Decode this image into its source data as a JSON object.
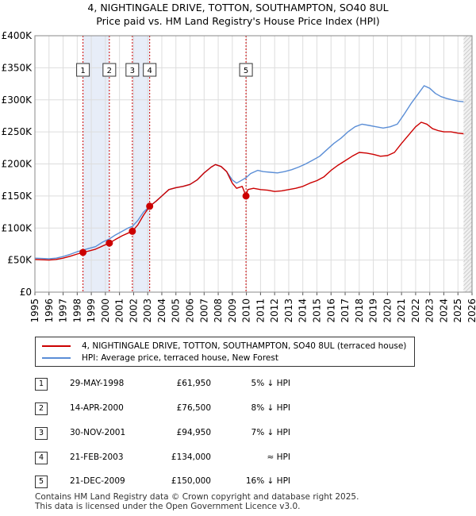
{
  "title_line1": "4, NIGHTINGALE DRIVE, TOTTON, SOUTHAMPTON, SO40 8UL",
  "title_line2": "Price paid vs. HM Land Registry's House Price Index (HPI)",
  "chart_data": {
    "type": "line",
    "xlim": [
      1995,
      2026
    ],
    "ylim": [
      0,
      400000
    ],
    "yticks": [
      {
        "value": 0,
        "label": "£0"
      },
      {
        "value": 50000,
        "label": "£50K"
      },
      {
        "value": 100000,
        "label": "£100K"
      },
      {
        "value": 150000,
        "label": "£150K"
      },
      {
        "value": 200000,
        "label": "£200K"
      },
      {
        "value": 250000,
        "label": "£250K"
      },
      {
        "value": 300000,
        "label": "£300K"
      },
      {
        "value": 350000,
        "label": "£350K"
      },
      {
        "value": 400000,
        "label": "£400K"
      }
    ],
    "xticks": [
      "1995",
      "1996",
      "1997",
      "1998",
      "1999",
      "2000",
      "2001",
      "2002",
      "2003",
      "2004",
      "2005",
      "2006",
      "2007",
      "2008",
      "2009",
      "2010",
      "2011",
      "2012",
      "2013",
      "2014",
      "2015",
      "2016",
      "2017",
      "2018",
      "2019",
      "2020",
      "2021",
      "2022",
      "2023",
      "2024",
      "2025",
      "2026"
    ],
    "series": [
      {
        "name": "4, NIGHTINGALE DRIVE, TOTTON, SOUTHAMPTON, SO40 8UL (terraced house)",
        "color": "#cc0000",
        "points": [
          [
            1995.0,
            51000
          ],
          [
            1995.5,
            50500
          ],
          [
            1996.0,
            50000
          ],
          [
            1996.5,
            51000
          ],
          [
            1997.0,
            53000
          ],
          [
            1997.5,
            56000
          ],
          [
            1998.0,
            59500
          ],
          [
            1998.41,
            61950
          ],
          [
            1998.8,
            64000
          ],
          [
            1999.3,
            67000
          ],
          [
            1999.8,
            72000
          ],
          [
            2000.28,
            76500
          ],
          [
            2000.7,
            82000
          ],
          [
            2001.2,
            88000
          ],
          [
            2001.6,
            92000
          ],
          [
            2001.91,
            94950
          ],
          [
            2002.3,
            105000
          ],
          [
            2002.7,
            120000
          ],
          [
            2003.14,
            134000
          ],
          [
            2003.6,
            142000
          ],
          [
            2004.0,
            150000
          ],
          [
            2004.5,
            160000
          ],
          [
            2005.0,
            163000
          ],
          [
            2005.5,
            165000
          ],
          [
            2006.0,
            168000
          ],
          [
            2006.5,
            175000
          ],
          [
            2007.0,
            186000
          ],
          [
            2007.5,
            195000
          ],
          [
            2007.8,
            199000
          ],
          [
            2008.2,
            196000
          ],
          [
            2008.6,
            188000
          ],
          [
            2009.0,
            170000
          ],
          [
            2009.3,
            162000
          ],
          [
            2009.7,
            165000
          ],
          [
            2009.97,
            150000
          ],
          [
            2010.1,
            160000
          ],
          [
            2010.5,
            162000
          ],
          [
            2011.0,
            160000
          ],
          [
            2011.5,
            159000
          ],
          [
            2012.0,
            157000
          ],
          [
            2012.5,
            158000
          ],
          [
            2013.0,
            160000
          ],
          [
            2013.5,
            162000
          ],
          [
            2014.0,
            165000
          ],
          [
            2014.5,
            170000
          ],
          [
            2015.0,
            174000
          ],
          [
            2015.5,
            180000
          ],
          [
            2016.0,
            190000
          ],
          [
            2016.5,
            198000
          ],
          [
            2017.0,
            205000
          ],
          [
            2017.5,
            212000
          ],
          [
            2018.0,
            218000
          ],
          [
            2018.5,
            217000
          ],
          [
            2019.0,
            215000
          ],
          [
            2019.5,
            212000
          ],
          [
            2020.0,
            213000
          ],
          [
            2020.5,
            218000
          ],
          [
            2021.0,
            232000
          ],
          [
            2021.5,
            245000
          ],
          [
            2022.0,
            258000
          ],
          [
            2022.4,
            265000
          ],
          [
            2022.8,
            262000
          ],
          [
            2023.2,
            255000
          ],
          [
            2023.6,
            252000
          ],
          [
            2024.0,
            250000
          ],
          [
            2024.5,
            250000
          ],
          [
            2025.0,
            248000
          ],
          [
            2025.4,
            247000
          ]
        ]
      },
      {
        "name": "HPI: Average price, terraced house, New Forest",
        "color": "#5b8ed6",
        "points": [
          [
            1995.0,
            53000
          ],
          [
            1995.5,
            52500
          ],
          [
            1996.0,
            52000
          ],
          [
            1996.5,
            53000
          ],
          [
            1997.0,
            55500
          ],
          [
            1997.5,
            59000
          ],
          [
            1998.0,
            63000
          ],
          [
            1998.41,
            65500
          ],
          [
            1998.8,
            68000
          ],
          [
            1999.3,
            71000
          ],
          [
            1999.8,
            78000
          ],
          [
            2000.28,
            83000
          ],
          [
            2000.7,
            89000
          ],
          [
            2001.2,
            95000
          ],
          [
            2001.6,
            100000
          ],
          [
            2001.91,
            102500
          ],
          [
            2002.3,
            112000
          ],
          [
            2002.7,
            125000
          ],
          [
            2003.14,
            134000
          ],
          [
            2003.6,
            142000
          ],
          [
            2004.0,
            150000
          ],
          [
            2004.5,
            160000
          ],
          [
            2005.0,
            163000
          ],
          [
            2005.5,
            165000
          ],
          [
            2006.0,
            168000
          ],
          [
            2006.5,
            175000
          ],
          [
            2007.0,
            186000
          ],
          [
            2007.5,
            195000
          ],
          [
            2007.8,
            199000
          ],
          [
            2008.2,
            196000
          ],
          [
            2008.6,
            188000
          ],
          [
            2009.0,
            175000
          ],
          [
            2009.3,
            170000
          ],
          [
            2009.7,
            175000
          ],
          [
            2009.97,
            178500
          ],
          [
            2010.3,
            185000
          ],
          [
            2010.8,
            190000
          ],
          [
            2011.2,
            188000
          ],
          [
            2011.7,
            187000
          ],
          [
            2012.2,
            186000
          ],
          [
            2012.7,
            188000
          ],
          [
            2013.2,
            191000
          ],
          [
            2013.7,
            195000
          ],
          [
            2014.2,
            200000
          ],
          [
            2014.7,
            206000
          ],
          [
            2015.2,
            212000
          ],
          [
            2015.7,
            222000
          ],
          [
            2016.2,
            232000
          ],
          [
            2016.7,
            240000
          ],
          [
            2017.2,
            250000
          ],
          [
            2017.7,
            258000
          ],
          [
            2018.2,
            262000
          ],
          [
            2018.7,
            260000
          ],
          [
            2019.2,
            258000
          ],
          [
            2019.7,
            256000
          ],
          [
            2020.2,
            258000
          ],
          [
            2020.7,
            262000
          ],
          [
            2021.2,
            278000
          ],
          [
            2021.7,
            295000
          ],
          [
            2022.2,
            310000
          ],
          [
            2022.6,
            322000
          ],
          [
            2023.0,
            318000
          ],
          [
            2023.4,
            310000
          ],
          [
            2023.8,
            305000
          ],
          [
            2024.2,
            302000
          ],
          [
            2024.6,
            300000
          ],
          [
            2025.0,
            298000
          ],
          [
            2025.4,
            297000
          ]
        ]
      }
    ],
    "sales": [
      {
        "label": "1",
        "x": 1998.41,
        "price": 61950
      },
      {
        "label": "2",
        "x": 2000.28,
        "price": 76500
      },
      {
        "label": "3",
        "x": 2001.91,
        "price": 94950
      },
      {
        "label": "4",
        "x": 2003.14,
        "price": 134000
      },
      {
        "label": "5",
        "x": 2009.97,
        "price": 150000
      }
    ],
    "shaded_spans": [
      [
        1998.41,
        2000.28
      ],
      [
        2001.91,
        2003.14
      ]
    ],
    "projection_start": 2025.4,
    "grid": true
  },
  "legend": {
    "property_label": "4, NIGHTINGALE DRIVE, TOTTON, SOUTHAMPTON, SO40 8UL (terraced house)",
    "hpi_label": "HPI: Average price, terraced house, New Forest",
    "property_color": "#cc0000",
    "hpi_color": "#5b8ed6"
  },
  "transactions": [
    {
      "num": "1",
      "date": "29-MAY-1998",
      "price": "£61,950",
      "hpi": "5% ↓ HPI"
    },
    {
      "num": "2",
      "date": "14-APR-2000",
      "price": "£76,500",
      "hpi": "8% ↓ HPI"
    },
    {
      "num": "3",
      "date": "30-NOV-2001",
      "price": "£94,950",
      "hpi": "7% ↓ HPI"
    },
    {
      "num": "4",
      "date": "21-FEB-2003",
      "price": "£134,000",
      "hpi": "≈ HPI"
    },
    {
      "num": "5",
      "date": "21-DEC-2009",
      "price": "£150,000",
      "hpi": "16% ↓ HPI"
    }
  ],
  "footer": {
    "line1": "Contains HM Land Registry data © Crown copyright and database right 2025.",
    "line2": "This data is licensed under the Open Government Licence v3.0."
  }
}
